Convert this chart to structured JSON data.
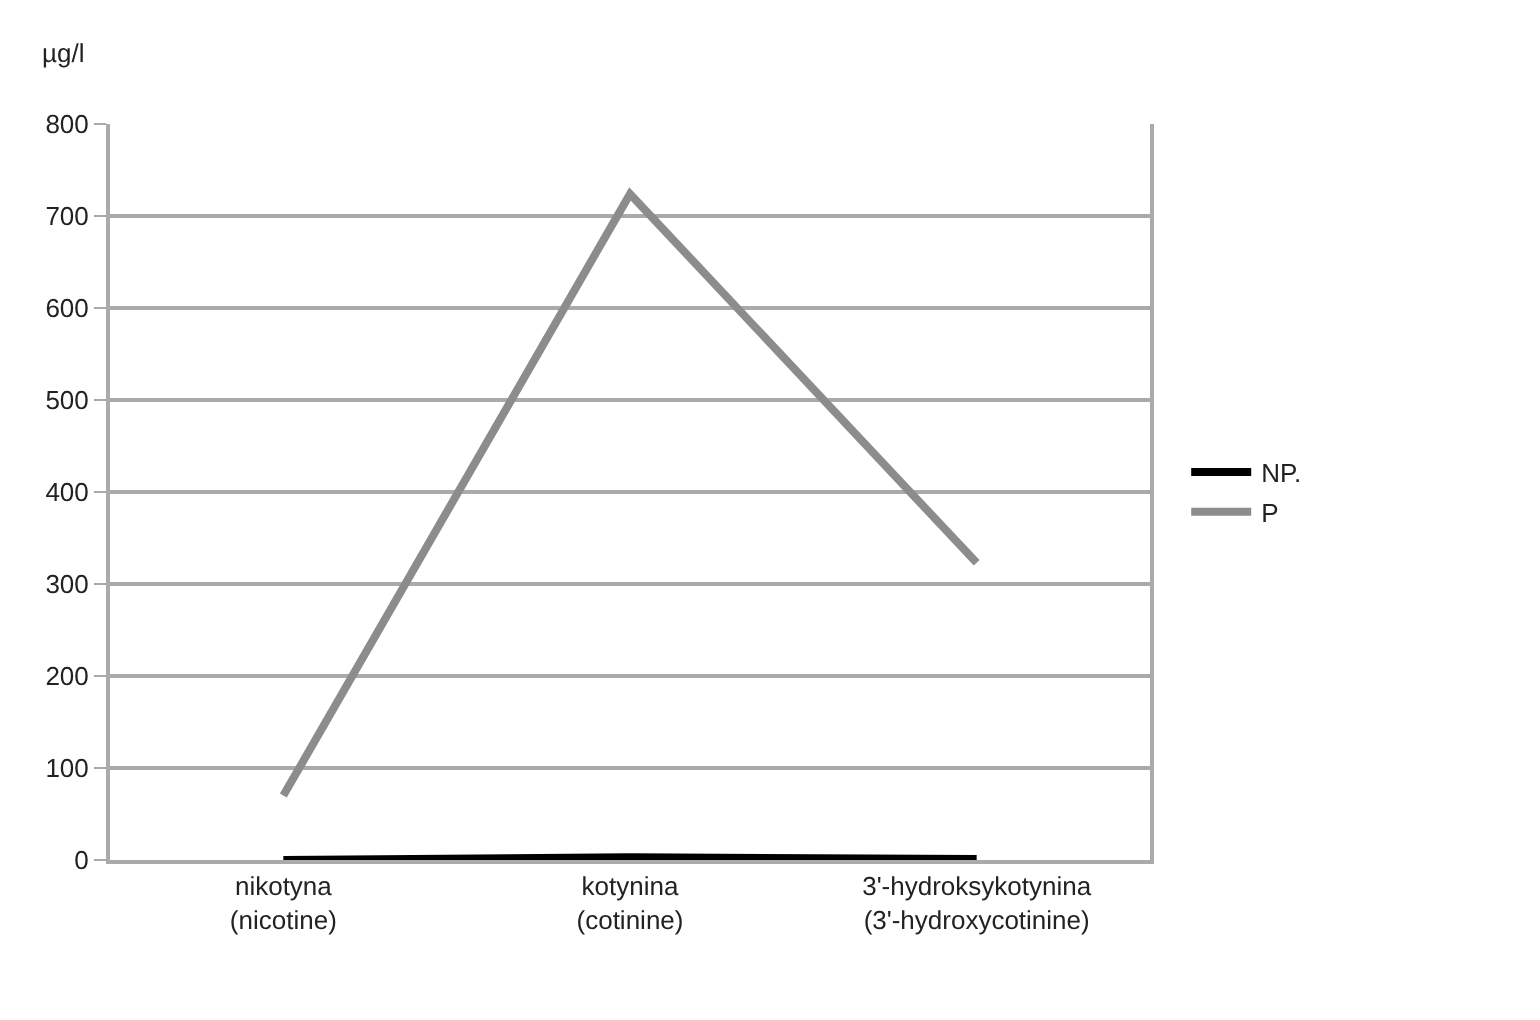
{
  "chart_data": {
    "type": "line",
    "ylabel": "µg/l",
    "categories": [
      "nikotyna\n(nicotine)",
      "kotynina\n(cotinine)",
      "3'-hydroksykotynina\n(3'-hydroxycotinine)"
    ],
    "series": [
      {
        "name": "NP.",
        "color": "#000000",
        "values": [
          0,
          3,
          1
        ]
      },
      {
        "name": "P",
        "color": "#8c8c8c",
        "values": [
          70,
          724,
          323
        ]
      }
    ],
    "ylim": [
      0,
      800
    ],
    "yticks": [
      0,
      100,
      200,
      300,
      400,
      500,
      600,
      700,
      800
    ],
    "grid": "y",
    "legend": "right",
    "marker": "none",
    "line_style": "solid"
  }
}
